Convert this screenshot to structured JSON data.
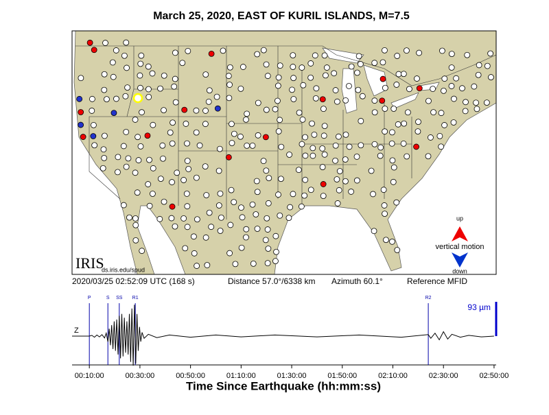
{
  "header": {
    "title": "March 25, 2020, EAST OF KURIL ISLANDS, M=7.5"
  },
  "map": {
    "logo": "IRIS",
    "url": "ds.iris.edu/spud",
    "legend": {
      "up": "up",
      "label": "vertical motion",
      "down": "down"
    }
  },
  "info": {
    "time": "2020/03/25 02:52:09 UTC (168 s)",
    "distance": "Distance  57.0°/6338 km",
    "azimuth": "Azimuth  60.1°",
    "reference": "Reference MFID"
  },
  "chart_data": {
    "type": "line",
    "channel": "Z",
    "x_label": "Time Since Earthquake (hh:mm:ss)",
    "color": "#000000",
    "xlim": [
      190,
      10250
    ],
    "xticks": [
      {
        "value": 600,
        "label": "00:10:00"
      },
      {
        "value": 1800,
        "label": "00:30:00"
      },
      {
        "value": 3000,
        "label": "00:50:00"
      },
      {
        "value": 4200,
        "label": "01:10:00"
      },
      {
        "value": 5400,
        "label": "01:30:00"
      },
      {
        "value": 6600,
        "label": "01:50:00"
      },
      {
        "value": 7800,
        "label": "02:10:00"
      },
      {
        "value": 9000,
        "label": "02:30:00"
      },
      {
        "value": 10200,
        "label": "02:50:00"
      }
    ],
    "phases": [
      {
        "name": "P",
        "x": 600
      },
      {
        "name": "S",
        "x": 1040
      },
      {
        "name": "SS",
        "x": 1310
      },
      {
        "name": "R1",
        "x": 1690
      },
      {
        "name": "R2",
        "x": 8640
      }
    ],
    "phase_color": "#0000aa",
    "scale_bar": {
      "value": 93,
      "label": "93 µm",
      "color": "#0000cc"
    },
    "x": [
      600,
      660,
      720,
      780,
      840,
      900,
      960,
      1000,
      1040,
      1070,
      1100,
      1130,
      1160,
      1190,
      1220,
      1250,
      1280,
      1310,
      1340,
      1370,
      1400,
      1430,
      1460,
      1490,
      1520,
      1550,
      1580,
      1610,
      1640,
      1670,
      1700,
      1730,
      1760,
      1790,
      1820,
      1850,
      1900,
      2000,
      2200,
      2500,
      3000,
      3600,
      4200,
      5000,
      6000,
      7000,
      8000,
      8640,
      8700,
      8800,
      8900,
      9000,
      9100,
      9200,
      9400,
      9600,
      9900,
      10200
    ],
    "values": [
      0,
      2,
      -3,
      3,
      -2,
      4,
      -5,
      8,
      -15,
      20,
      -25,
      30,
      -35,
      40,
      -40,
      45,
      -50,
      55,
      -60,
      60,
      -55,
      50,
      -45,
      40,
      -50,
      60,
      -70,
      75,
      -80,
      85,
      -75,
      60,
      -40,
      25,
      -15,
      10,
      -6,
      5,
      -4,
      3,
      -3,
      3,
      -2,
      3,
      -2,
      3,
      -3,
      4,
      -6,
      8,
      -10,
      12,
      -8,
      5,
      -3,
      2,
      -2,
      0
    ]
  }
}
